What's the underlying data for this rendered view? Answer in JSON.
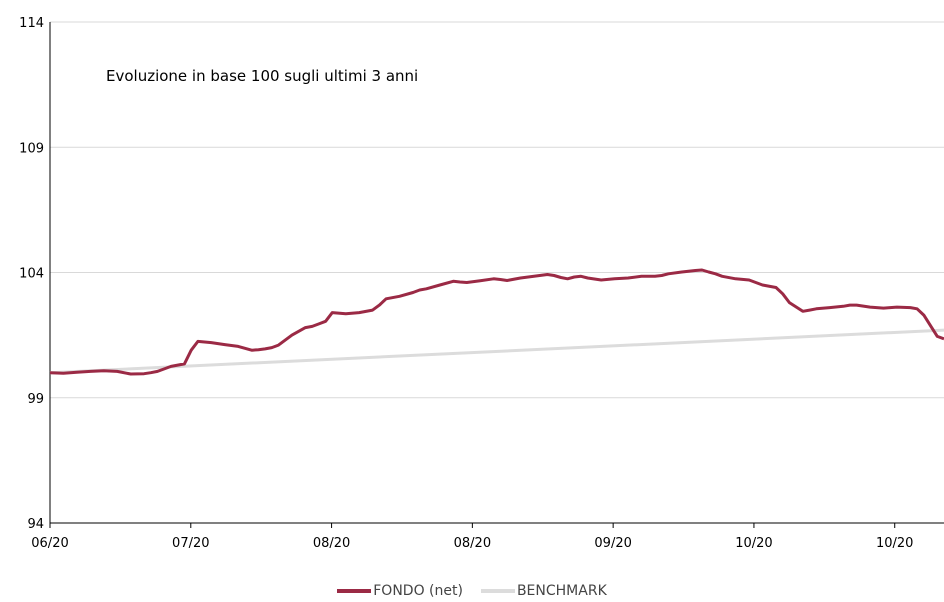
{
  "chart_data": {
    "type": "line",
    "title": "Evoluzione in base 100 sugli ultimi 3 anni",
    "ylim": [
      94,
      114
    ],
    "y_ticks": [
      "94",
      "99",
      "104",
      "109",
      "114"
    ],
    "x_tick_labels": [
      "06/20",
      "07/20",
      "08/20",
      "08/20",
      "09/20",
      "10/20",
      "10/20"
    ],
    "grid": "horizontal",
    "legend_position": "bottom",
    "series": [
      {
        "name": "FONDO (net)",
        "color": "#9b2a45",
        "x": [
          0,
          2,
          4,
          6,
          8,
          10,
          12,
          14,
          15,
          16,
          18,
          20,
          21,
          22,
          24,
          26,
          28,
          30,
          31,
          32,
          33,
          34,
          36,
          38,
          39,
          40,
          41,
          42,
          44,
          46,
          48,
          49,
          50,
          52,
          54,
          55,
          56,
          58,
          60,
          61,
          62,
          64,
          66,
          67,
          68,
          70,
          72,
          74,
          75,
          76,
          77,
          78,
          79,
          80,
          82,
          84,
          86,
          88,
          90,
          91,
          92,
          94,
          95,
          96,
          97,
          98,
          99,
          100,
          102,
          104,
          105,
          106,
          108,
          109,
          110,
          112,
          113,
          114,
          116,
          118,
          119,
          120,
          122,
          124,
          125,
          126,
          128,
          129,
          130,
          132,
          133
        ],
        "y": [
          100.0,
          99.98,
          100.02,
          100.05,
          100.08,
          100.05,
          99.95,
          99.96,
          100.0,
          100.05,
          100.25,
          100.35,
          100.9,
          101.25,
          101.2,
          101.12,
          101.05,
          100.9,
          100.92,
          100.95,
          101.0,
          101.1,
          101.5,
          101.8,
          101.85,
          101.95,
          102.05,
          102.4,
          102.35,
          102.4,
          102.5,
          102.7,
          102.95,
          103.05,
          103.2,
          103.3,
          103.35,
          103.5,
          103.65,
          103.62,
          103.6,
          103.67,
          103.75,
          103.72,
          103.68,
          103.78,
          103.85,
          103.92,
          103.88,
          103.8,
          103.75,
          103.82,
          103.85,
          103.78,
          103.7,
          103.75,
          103.78,
          103.85,
          103.85,
          103.88,
          103.95,
          104.02,
          104.05,
          104.08,
          104.1,
          104.02,
          103.95,
          103.85,
          103.75,
          103.7,
          103.6,
          103.5,
          103.4,
          103.15,
          102.8,
          102.45,
          102.5,
          102.55,
          102.6,
          102.65,
          102.7,
          102.7,
          102.62,
          102.58,
          102.6,
          102.62,
          102.6,
          102.55,
          102.3,
          101.45,
          101.35
        ],
        "x_note": "trading-day index"
      },
      {
        "name": "BENCHMARK",
        "color": "#dcdcdc",
        "x": [
          0,
          133
        ],
        "y": [
          100.0,
          101.7
        ]
      }
    ]
  }
}
